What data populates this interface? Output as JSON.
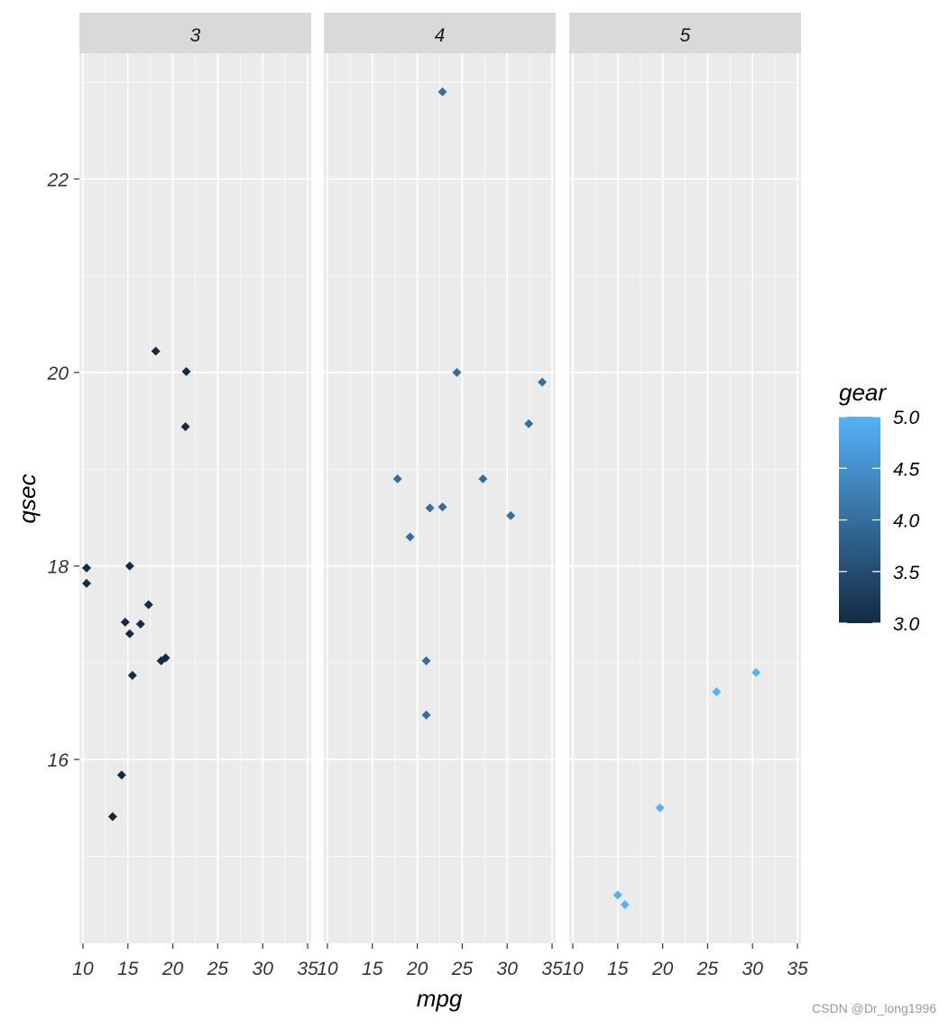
{
  "chart_data": {
    "type": "scatter",
    "facet_by": "gear",
    "xlabel": "mpg",
    "ylabel": "qsec",
    "xlim": [
      9.6,
      35.4
    ],
    "ylim": [
      14.1,
      23.3
    ],
    "x_ticks": [
      "10",
      "15",
      "20",
      "25",
      "30",
      "35"
    ],
    "y_ticks": [
      "16",
      "18",
      "20",
      "22"
    ],
    "grid": true,
    "panels": [
      {
        "label": "3",
        "gear": 3,
        "points": [
          {
            "x": 21.4,
            "y": 19.44
          },
          {
            "x": 18.7,
            "y": 17.02
          },
          {
            "x": 18.1,
            "y": 20.22
          },
          {
            "x": 14.3,
            "y": 15.84
          },
          {
            "x": 16.4,
            "y": 17.4
          },
          {
            "x": 17.3,
            "y": 17.6
          },
          {
            "x": 15.2,
            "y": 18.0
          },
          {
            "x": 10.4,
            "y": 17.98
          },
          {
            "x": 10.4,
            "y": 17.82
          },
          {
            "x": 14.7,
            "y": 17.42
          },
          {
            "x": 21.5,
            "y": 20.01
          },
          {
            "x": 15.5,
            "y": 16.87
          },
          {
            "x": 15.2,
            "y": 17.3
          },
          {
            "x": 13.3,
            "y": 15.41
          },
          {
            "x": 19.2,
            "y": 17.05
          }
        ]
      },
      {
        "label": "4",
        "gear": 4,
        "points": [
          {
            "x": 21.0,
            "y": 16.46
          },
          {
            "x": 21.0,
            "y": 17.02
          },
          {
            "x": 22.8,
            "y": 18.61
          },
          {
            "x": 24.4,
            "y": 20.0
          },
          {
            "x": 22.8,
            "y": 22.9
          },
          {
            "x": 19.2,
            "y": 18.3
          },
          {
            "x": 17.8,
            "y": 18.9
          },
          {
            "x": 32.4,
            "y": 19.47
          },
          {
            "x": 30.4,
            "y": 18.52
          },
          {
            "x": 33.9,
            "y": 19.9
          },
          {
            "x": 27.3,
            "y": 18.9
          },
          {
            "x": 21.4,
            "y": 18.6
          }
        ]
      },
      {
        "label": "5",
        "gear": 5,
        "points": [
          {
            "x": 26.0,
            "y": 16.7
          },
          {
            "x": 30.4,
            "y": 16.9
          },
          {
            "x": 15.8,
            "y": 14.5
          },
          {
            "x": 19.7,
            "y": 15.5
          },
          {
            "x": 15.0,
            "y": 14.6
          }
        ]
      }
    ],
    "legend": {
      "title": "gear",
      "placement": "right",
      "type": "colorbar",
      "range": [
        3.0,
        5.0
      ],
      "ticks": [
        "3.0",
        "3.5",
        "4.0",
        "4.5",
        "5.0"
      ],
      "color_low": "#132B43",
      "color_high": "#56B1F7"
    },
    "colors": {
      "panel_bg": "#EBEBEB",
      "strip_bg": "#D9D9D9",
      "grid_major": "#FFFFFF",
      "text": "#333333",
      "axis_title": "#000000"
    }
  },
  "watermark": "CSDN @Dr_long1996"
}
